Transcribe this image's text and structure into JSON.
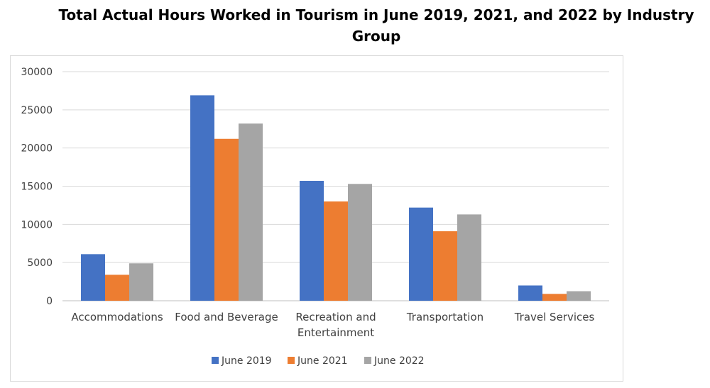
{
  "chart_data": {
    "type": "bar",
    "title": "Total Actual Hours Worked in Tourism in June 2019, 2021, and 2022 by Industry Group",
    "categories": [
      [
        "Accommodations"
      ],
      [
        "Food and Beverage"
      ],
      [
        "Recreation and",
        "Entertainment"
      ],
      [
        "Transportation"
      ],
      [
        "Travel Services"
      ]
    ],
    "series": [
      {
        "name": "June 2019",
        "color": "#4472c4",
        "values": [
          6100,
          26900,
          15700,
          12200,
          2000
        ]
      },
      {
        "name": "June 2021",
        "color": "#ed7d31",
        "values": [
          3400,
          21200,
          13000,
          9100,
          900
        ]
      },
      {
        "name": "June 2022",
        "color": "#a5a5a5",
        "values": [
          4900,
          23200,
          15300,
          11300,
          1250
        ]
      }
    ],
    "ylim": [
      0,
      30000
    ],
    "yticks": [
      0,
      5000,
      10000,
      15000,
      20000,
      25000,
      30000
    ],
    "grid": true,
    "legend_position": "bottom",
    "xlabel": "",
    "ylabel": ""
  }
}
